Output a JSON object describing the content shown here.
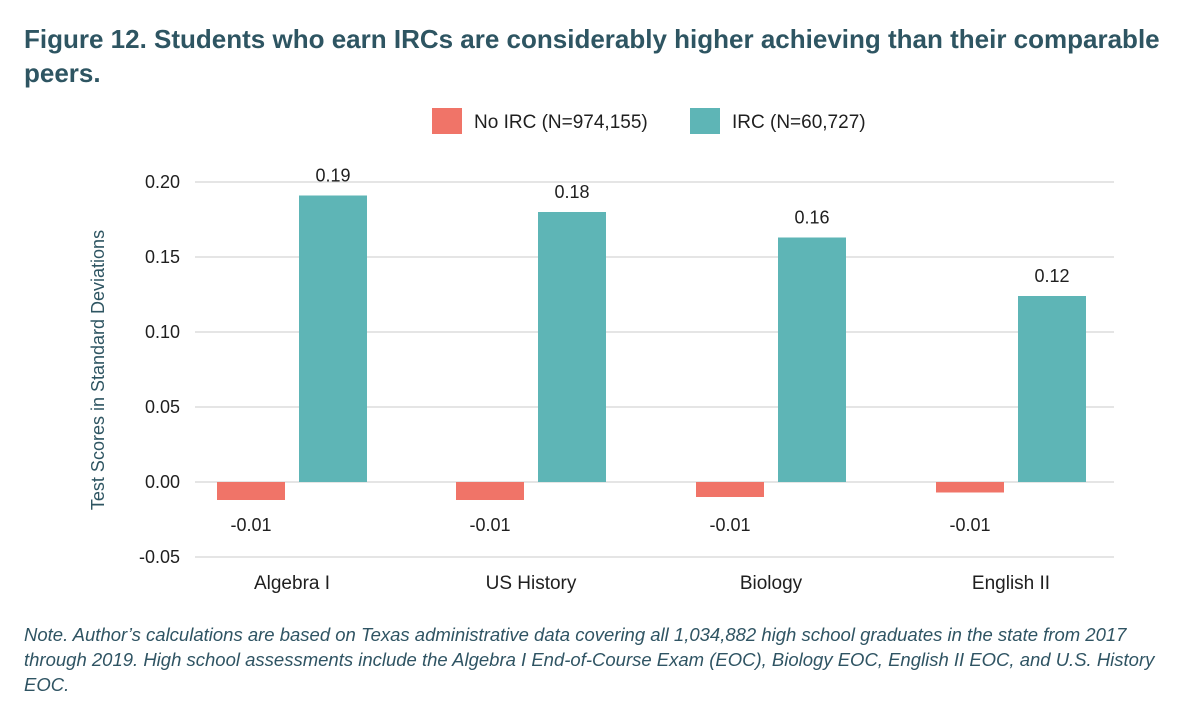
{
  "figure": {
    "title": "Figure 12. Students who earn IRCs are considerably higher achieving than their comparable peers.",
    "note": "Note. Author’s calculations are based on Texas administrative data covering all 1,034,882 high school graduates in the state from 2017 through 2019. High school assessments include the Algebra I End-of-Course Exam (EOC), Biology EOC, English II EOC, and U.S. History EOC."
  },
  "chart_data": {
    "type": "bar",
    "title": "Figure 12. Students who earn IRCs are considerably higher achieving than their comparable peers.",
    "xlabel": "",
    "ylabel": "Test Scores in Standard Deviations",
    "categories": [
      "Algebra I",
      "US History",
      "Biology",
      "English II"
    ],
    "series": [
      {
        "name": "No IRC (N=974,155)",
        "color": "#f07468",
        "values": [
          -0.012,
          -0.012,
          -0.01,
          -0.007
        ],
        "labels": [
          "-0.01",
          "-0.01",
          "-0.01",
          "-0.01"
        ]
      },
      {
        "name": "IRC (N=60,727)",
        "color": "#5eb5b6",
        "values": [
          0.191,
          0.18,
          0.163,
          0.124
        ],
        "labels": [
          "0.19",
          "0.18",
          "0.16",
          "0.12"
        ]
      }
    ],
    "ylim": [
      -0.05,
      0.2
    ],
    "yticks": [
      0.2,
      0.15,
      0.1,
      0.05,
      0.0,
      -0.05
    ],
    "ytick_labels": [
      "0.20",
      "0.15",
      "0.10",
      "0.05",
      "0.00",
      "-0.05"
    ],
    "grid": true,
    "legend_position": "top-center"
  },
  "colors": {
    "title": "#2e5562",
    "note": "#2f5463",
    "grid": "#d5d5d5",
    "axis_text": "#1f1f1f"
  }
}
